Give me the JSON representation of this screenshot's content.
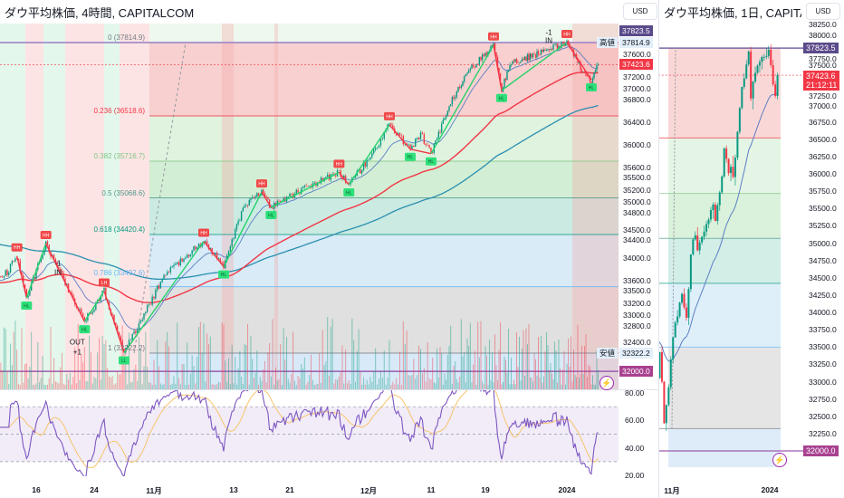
{
  "header": {
    "title": "ダウ平均株価, 4時間, CAPITALCOM",
    "currency": "USD"
  },
  "daily_header": {
    "title": "ダウ平均株価, 1日, CAPITALCOM",
    "currency": "USD"
  },
  "icons": {
    "alert": "lightning-icon"
  },
  "colors": {
    "up": "#089981",
    "down": "#f23645",
    "zigzag_up": "#22d36a",
    "zigzag_down": "#f23645",
    "ema_fast": "#5b7fc4",
    "ema_mid": "#f23645",
    "ema_slow": "#2a8fb0",
    "rsi": "#7e57c2",
    "rsi_ma": "#f7c46c",
    "high_badge": "#5b4a8a",
    "price_badge": "#f23645",
    "level_badge": "#a8418f"
  },
  "chart_data": [
    {
      "type": "candlestick",
      "panel": "4時間",
      "price_anchors": [
        {
          "date": "2023-10-09",
          "price": 33500
        },
        {
          "date": "2023-10-11",
          "price": 33760
        },
        {
          "date": "2023-10-12",
          "price": 34040,
          "label": "HH"
        },
        {
          "date": "2023-10-13",
          "price": 33300,
          "label": "HL"
        },
        {
          "date": "2023-10-17",
          "price": 34260,
          "label": "HH"
        },
        {
          "date": "2023-10-23",
          "price": 32880,
          "label": "HL"
        },
        {
          "date": "2023-10-25",
          "price": 33420,
          "label": "LH"
        },
        {
          "date": "2023-10-27",
          "price": 32330,
          "label": "LL"
        },
        {
          "date": "2023-10-31",
          "price": 33000
        },
        {
          "date": "2023-11-02",
          "price": 33700
        },
        {
          "date": "2023-11-06",
          "price": 34000
        },
        {
          "date": "2023-11-08",
          "price": 34300,
          "label": "HH"
        },
        {
          "date": "2023-11-10",
          "price": 33850,
          "label": "HL"
        },
        {
          "date": "2023-11-14",
          "price": 34900
        },
        {
          "date": "2023-11-16",
          "price": 35170,
          "label": "HH"
        },
        {
          "date": "2023-11-17",
          "price": 34900,
          "label": "HL"
        },
        {
          "date": "2023-11-22",
          "price": 35200
        },
        {
          "date": "2023-11-28",
          "price": 35520,
          "label": "HH"
        },
        {
          "date": "2023-11-29",
          "price": 35300,
          "label": "HL"
        },
        {
          "date": "2023-12-01",
          "price": 35750
        },
        {
          "date": "2023-12-05",
          "price": 36360,
          "label": "HH"
        },
        {
          "date": "2023-12-07",
          "price": 35930,
          "label": "HL"
        },
        {
          "date": "2023-12-08",
          "price": 36200
        },
        {
          "date": "2023-12-11",
          "price": 35850,
          "label": "HL"
        },
        {
          "date": "2023-12-13",
          "price": 36700
        },
        {
          "date": "2023-12-15",
          "price": 37300
        },
        {
          "date": "2023-12-20",
          "price": 37770,
          "label": "HH"
        },
        {
          "date": "2023-12-21",
          "price": 36970,
          "label": "HL"
        },
        {
          "date": "2023-12-22",
          "price": 37450
        },
        {
          "date": "2023-12-28",
          "price": 37650
        },
        {
          "date": "2024-01-02",
          "price": 37815,
          "label": "HH"
        },
        {
          "date": "2024-01-04",
          "price": 37300
        },
        {
          "date": "2024-01-05",
          "price": 37158,
          "label": "HL"
        },
        {
          "date": "2024-01-05T20",
          "price": 37423.6
        }
      ],
      "fib_levels": [
        {
          "ratio": 0,
          "price": 37814.9,
          "label": "0 (37814.9)",
          "color": "#787b86"
        },
        {
          "ratio": 0.236,
          "price": 36518.6,
          "label": "0.236 (36518.6)",
          "color": "#f23645"
        },
        {
          "ratio": 0.382,
          "price": 35716.7,
          "label": "0.382 (35716.7)",
          "color": "#81c784"
        },
        {
          "ratio": 0.5,
          "price": 35068.6,
          "label": "0.5 (35068.6)",
          "color": "#4f9a8a"
        },
        {
          "ratio": 0.618,
          "price": 34420.4,
          "label": "0.618 (34420.4)",
          "color": "#089981"
        },
        {
          "ratio": 0.786,
          "price": 33497.6,
          "label": "0.786 (33497.6)",
          "color": "#64b5f6"
        },
        {
          "ratio": 1,
          "price": 32322.2,
          "label": "1 (32322.2)",
          "color": "#787b86"
        }
      ],
      "fib_zone_colors": [
        "#f8c9c9",
        "#dcf2dc",
        "#cdeccf",
        "#c4e7df",
        "#d3e9f7",
        "#dcdcdc",
        "#d3e6f8"
      ],
      "price_axis_ticks": [
        "37600.0",
        "37200.0",
        "37000.0",
        "36800.0",
        "36400.0",
        "36000.0",
        "35600.0",
        "35500.0",
        "35200.0",
        "35000.0",
        "34800.0",
        "34500.0",
        "34400.0",
        "34000.0",
        "33600.0",
        "33500.0",
        "33200.0",
        "33000.0",
        "32800.0",
        "32400.0"
      ],
      "badges": [
        {
          "text": "37823.5",
          "price": 37823.5,
          "kind": "high_badge"
        },
        {
          "text": "37423.6",
          "price": 37423.6,
          "kind": "price_badge"
        },
        {
          "text": "32000.0",
          "price": 32000.0,
          "kind": "level_badge"
        }
      ],
      "tags": [
        {
          "label": "高値",
          "text": "37814.9",
          "price": 37814.9
        },
        {
          "label": "安値",
          "text": "32322.2",
          "price": 32322.2
        }
      ],
      "annotations": [
        {
          "text": "-1",
          "date": "2023-10-19",
          "price": 33900
        },
        {
          "text": "IN",
          "date": "2023-10-19",
          "price": 33740
        },
        {
          "text": "OUT",
          "date": "2023-10-23",
          "price": 32660
        },
        {
          "text": "+1",
          "date": "2023-10-23",
          "price": 32480
        },
        {
          "text": "-1",
          "date": "2024-01-02",
          "price": 37990
        },
        {
          "text": "IN",
          "date": "2024-01-02",
          "price": 37840
        }
      ],
      "rsi_axis_ticks": [
        "80.00",
        "60.00",
        "40.00",
        "20.00"
      ],
      "rsi_bands": [
        70,
        50,
        30
      ],
      "x_ticks": [
        {
          "date": "2023-10-16",
          "label": "16"
        },
        {
          "date": "2023-10-24",
          "label": "24"
        },
        {
          "date": "2023-11-01",
          "label": "11月"
        },
        {
          "date": "2023-11-13",
          "label": "13"
        },
        {
          "date": "2023-11-21",
          "label": "21"
        },
        {
          "date": "2023-12-01",
          "label": "12月"
        },
        {
          "date": "2023-12-11",
          "label": "11"
        },
        {
          "date": "2023-12-19",
          "label": "19"
        },
        {
          "date": "2024-01-02",
          "label": "2024"
        }
      ]
    },
    {
      "type": "candlestick",
      "panel": "1日",
      "price_axis_ticks": [
        "38250.0",
        "38000.0",
        "37750.0",
        "37500.0",
        "37250.0",
        "37000.0",
        "36750.0",
        "36500.0",
        "36250.0",
        "36000.0",
        "35750.0",
        "35500.0",
        "35250.0",
        "35000.0",
        "34750.0",
        "34500.0",
        "34250.0",
        "34000.0",
        "33750.0",
        "33500.0",
        "33250.0",
        "33000.0",
        "32750.0",
        "32500.0",
        "32250.0"
      ],
      "badges": [
        {
          "text": "37823.5",
          "price": 37823.5,
          "kind": "high_badge"
        },
        {
          "text": "37423.6",
          "sub": "21:12:11",
          "price": 37423.6,
          "kind": "price_badge"
        },
        {
          "text": "32000.0",
          "price": 32000.0,
          "kind": "level_badge"
        }
      ],
      "x_ticks": [
        {
          "date": "2023-11-01",
          "label": "11月"
        },
        {
          "date": "2024-01-02",
          "label": "2024"
        }
      ]
    }
  ]
}
